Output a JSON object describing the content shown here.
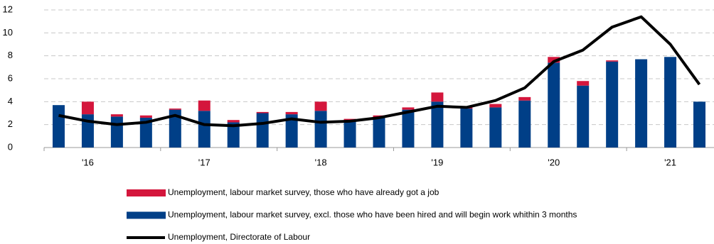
{
  "chart_data": {
    "type": "bar",
    "stacked": true,
    "categories": [
      null,
      "'16",
      null,
      null,
      null,
      "'17",
      null,
      null,
      null,
      "'18",
      null,
      null,
      null,
      "'19",
      null,
      null,
      null,
      "'20",
      null,
      null,
      null,
      "'21",
      null
    ],
    "series": [
      {
        "name": "Unemployment, labour market survey, those who have already got a job",
        "type": "bar",
        "color": "#d4163c",
        "values": [
          0,
          1.1,
          0.2,
          0.2,
          0.1,
          0.9,
          0.2,
          0.1,
          0.2,
          0.8,
          0.1,
          0.2,
          0.2,
          0.8,
          0.2,
          0.3,
          0.3,
          0.5,
          0.4,
          0.1,
          0,
          0,
          0
        ]
      },
      {
        "name": "Unemployment, labour market survey, excl. those who have been hired and will begin work whithin 3 months",
        "type": "bar",
        "color": "#003f87",
        "values": [
          3.7,
          2.9,
          2.7,
          2.6,
          3.3,
          3.2,
          2.2,
          3.0,
          2.9,
          3.2,
          2.4,
          2.6,
          3.3,
          4.0,
          3.4,
          3.5,
          4.1,
          7.4,
          5.4,
          7.5,
          7.7,
          7.9,
          4.0
        ]
      },
      {
        "name": "Unemployment, Directorate of Labour",
        "type": "line",
        "color": "#000000",
        "values": [
          2.8,
          2.3,
          2.0,
          2.2,
          2.8,
          2.0,
          1.9,
          2.1,
          2.5,
          2.2,
          2.3,
          2.6,
          3.1,
          3.6,
          3.5,
          4.1,
          5.2,
          7.5,
          8.5,
          10.5,
          11.4,
          9.0,
          5.5
        ]
      }
    ],
    "ylim": [
      0,
      12
    ],
    "yticks": [
      0,
      2,
      4,
      6,
      8,
      10,
      12
    ],
    "grid": true
  }
}
